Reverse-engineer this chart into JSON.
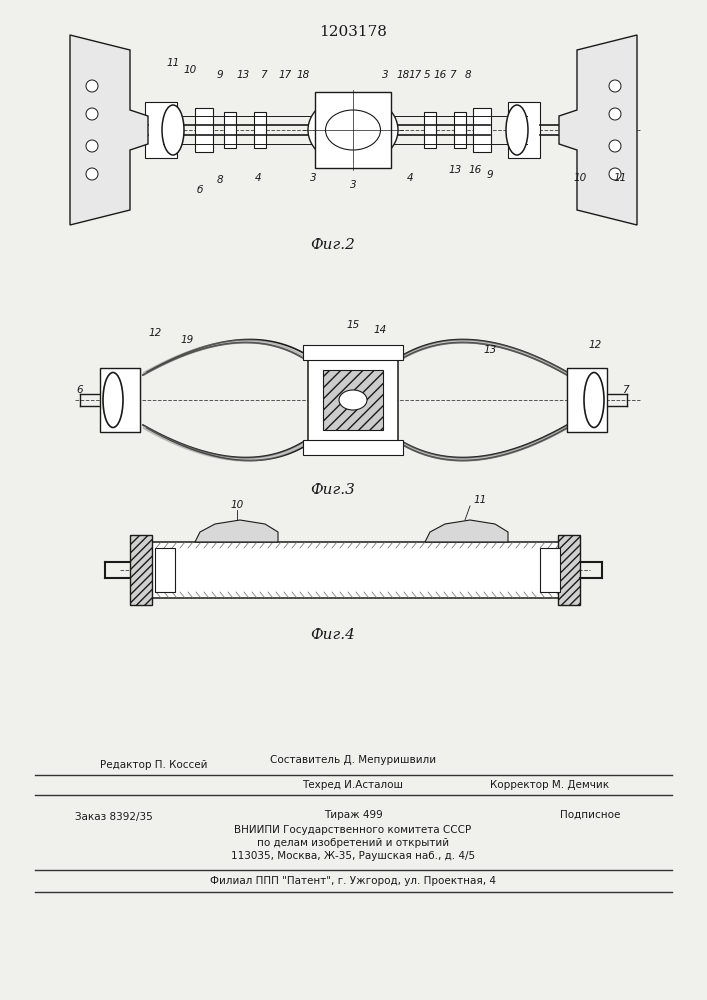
{
  "patent_number": "1203178",
  "background_color": "#f0f0ec",
  "line_color": "#1a1a1a",
  "fig2_label": "Фиг.2",
  "fig3_label": "Фиг.3",
  "fig4_label": "Фиг.4"
}
